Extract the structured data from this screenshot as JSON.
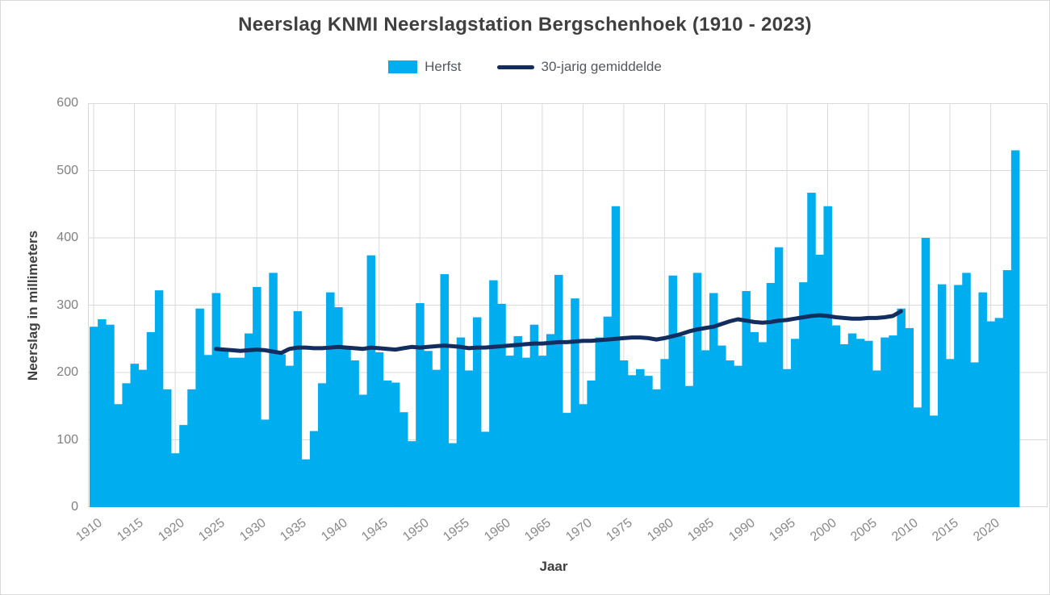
{
  "header": {
    "title": "Neerslag KNMI Neerslagstation Bergschenhoek (1910 - 2023)"
  },
  "legend": [
    {
      "label": "Herfst",
      "swatch": "bar-swatch"
    },
    {
      "label": "30-jarig gemiddelde",
      "swatch": "line-swatch"
    }
  ],
  "colors": {
    "bar": "#00aeef",
    "line": "#122d5e",
    "grid": "#d9d9d9",
    "plot_border": "#d9d9d9",
    "tick_label": "#8a8a8a",
    "ytick_label": "#7f7f7f",
    "axis_title": "#404040",
    "title": "#404040",
    "background": "#ffffff"
  },
  "chart_data": {
    "type": "bar",
    "title": "Neerslag KNMI Neerslagstation Bergschenhoek (1910 - 2023)",
    "xlabel": "Jaar",
    "ylabel": "Neerslag in millimeters",
    "ylim": [
      0,
      600
    ],
    "grid": true,
    "legend_position": "top",
    "yticks": [
      0,
      100,
      200,
      300,
      400,
      500,
      600
    ],
    "xticks": [
      1910,
      1915,
      1920,
      1925,
      1930,
      1935,
      1940,
      1945,
      1950,
      1955,
      1960,
      1965,
      1970,
      1975,
      1980,
      1985,
      1990,
      1995,
      2000,
      2005,
      2010,
      2015,
      2020
    ],
    "categories": [
      1910,
      1911,
      1912,
      1913,
      1914,
      1915,
      1916,
      1917,
      1918,
      1919,
      1920,
      1921,
      1922,
      1923,
      1924,
      1925,
      1926,
      1927,
      1928,
      1929,
      1930,
      1931,
      1932,
      1933,
      1934,
      1935,
      1936,
      1937,
      1938,
      1939,
      1940,
      1941,
      1942,
      1943,
      1944,
      1945,
      1946,
      1947,
      1948,
      1949,
      1950,
      1951,
      1952,
      1953,
      1954,
      1955,
      1956,
      1957,
      1958,
      1959,
      1960,
      1961,
      1962,
      1963,
      1964,
      1965,
      1966,
      1967,
      1968,
      1969,
      1970,
      1971,
      1972,
      1973,
      1974,
      1975,
      1976,
      1977,
      1978,
      1979,
      1980,
      1981,
      1982,
      1983,
      1984,
      1985,
      1986,
      1987,
      1988,
      1989,
      1990,
      1991,
      1992,
      1993,
      1994,
      1995,
      1996,
      1997,
      1998,
      1999,
      2000,
      2001,
      2002,
      2003,
      2004,
      2005,
      2006,
      2007,
      2008,
      2009,
      2010,
      2011,
      2012,
      2013,
      2014,
      2015,
      2016,
      2017,
      2018,
      2019,
      2020,
      2021,
      2022,
      2023
    ],
    "series": [
      {
        "name": "Herfst",
        "type": "bar",
        "values": [
          268,
          279,
          271,
          153,
          184,
          213,
          204,
          260,
          322,
          175,
          80,
          122,
          175,
          295,
          226,
          318,
          236,
          222,
          222,
          258,
          327,
          130,
          348,
          227,
          210,
          291,
          71,
          113,
          184,
          319,
          297,
          238,
          218,
          167,
          374,
          230,
          188,
          185,
          141,
          98,
          303,
          232,
          204,
          346,
          95,
          252,
          203,
          282,
          112,
          337,
          302,
          225,
          254,
          222,
          271,
          225,
          257,
          345,
          140,
          310,
          153,
          188,
          252,
          283,
          447,
          218,
          196,
          205,
          195,
          175,
          220,
          344,
          254,
          180,
          348,
          233,
          318,
          240,
          218,
          210,
          321,
          260,
          245,
          333,
          386,
          205,
          250,
          334,
          467,
          375,
          447,
          270,
          242,
          258,
          250,
          247,
          203,
          252,
          255,
          295,
          266,
          148,
          400,
          136,
          331,
          220,
          330,
          348,
          215,
          319,
          276,
          281,
          352,
          530
        ]
      },
      {
        "name": "30-jarig gemiddelde",
        "type": "line",
        "x": [
          1925,
          1926,
          1927,
          1928,
          1929,
          1930,
          1931,
          1932,
          1933,
          1934,
          1935,
          1936,
          1937,
          1938,
          1939,
          1940,
          1941,
          1942,
          1943,
          1944,
          1945,
          1946,
          1947,
          1948,
          1949,
          1950,
          1951,
          1952,
          1953,
          1954,
          1955,
          1956,
          1957,
          1958,
          1959,
          1960,
          1961,
          1962,
          1963,
          1964,
          1965,
          1966,
          1967,
          1968,
          1969,
          1970,
          1971,
          1972,
          1973,
          1974,
          1975,
          1976,
          1977,
          1978,
          1979,
          1980,
          1981,
          1982,
          1983,
          1984,
          1985,
          1986,
          1987,
          1988,
          1989,
          1990,
          1991,
          1992,
          1993,
          1994,
          1995,
          1996,
          1997,
          1998,
          1999,
          2000,
          2001,
          2002,
          2003,
          2004,
          2005,
          2006,
          2007,
          2008,
          2009
        ],
        "values": [
          235,
          234,
          233,
          232,
          233,
          234,
          233,
          231,
          229,
          235,
          237,
          237,
          236,
          236,
          237,
          238,
          237,
          236,
          235,
          237,
          236,
          235,
          234,
          236,
          238,
          237,
          238,
          239,
          240,
          239,
          238,
          236,
          237,
          237,
          238,
          239,
          240,
          241,
          242,
          243,
          243,
          244,
          245,
          245,
          246,
          247,
          247,
          248,
          249,
          250,
          251,
          252,
          252,
          251,
          249,
          251,
          254,
          257,
          261,
          264,
          266,
          268,
          272,
          276,
          279,
          277,
          275,
          274,
          275,
          277,
          278,
          280,
          282,
          284,
          285,
          284,
          282,
          281,
          280,
          280,
          281,
          281,
          282,
          284,
          291
        ]
      }
    ]
  }
}
